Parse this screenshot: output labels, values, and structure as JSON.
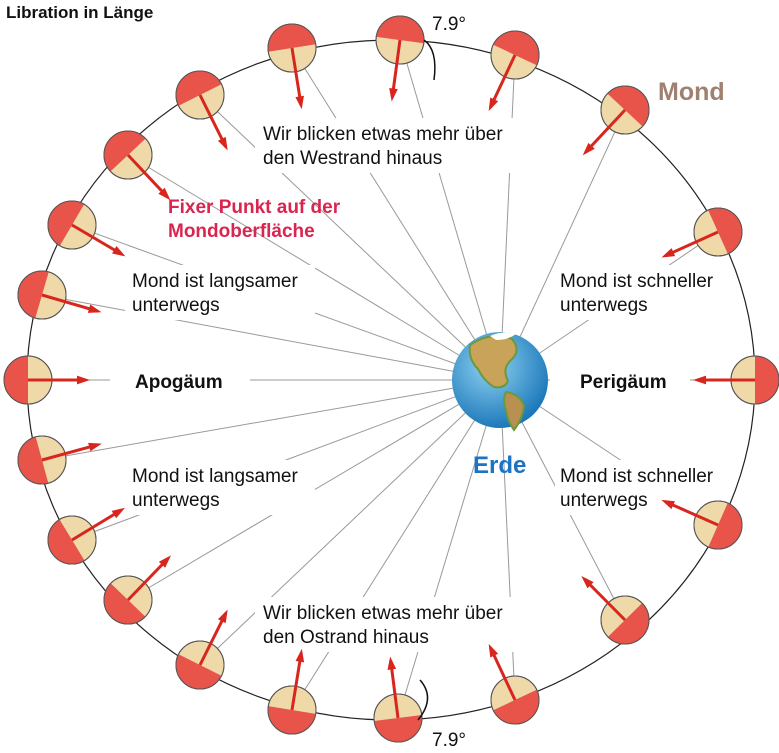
{
  "title": "Libration in Länge",
  "angle_top": "7.9°",
  "angle_bottom": "7.9°",
  "moon_label": "Mond",
  "earth_label": "Erde",
  "west": [
    "Wir blicken etwas mehr über",
    "den Westrand hinaus"
  ],
  "east": [
    "Wir blicken etwas mehr über",
    "den Ostrand hinaus"
  ],
  "fixed_point": [
    "Fixer Punkt auf der",
    "Mondoberfläche"
  ],
  "slow_upper": [
    "Mond ist langsamer",
    "unterwegs"
  ],
  "slow_lower": [
    "Mond ist langsamer",
    "unterwegs"
  ],
  "fast_upper": [
    "Mond ist schneller",
    "unterwegs"
  ],
  "fast_lower": [
    "Mond ist schneller",
    "unterwegs"
  ],
  "apogee": "Apogäum",
  "perigee": "Perigäum"
}
